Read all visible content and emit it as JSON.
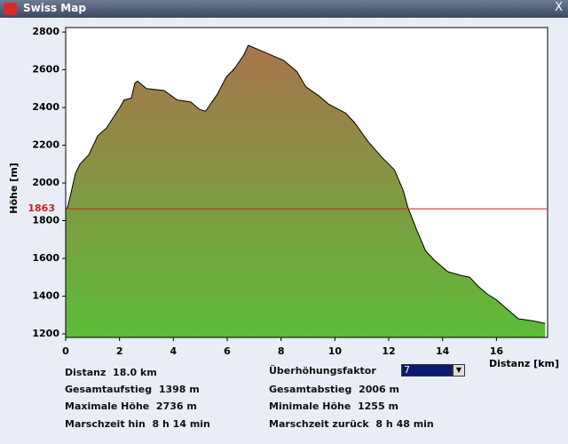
{
  "window": {
    "title": "Swiss Map",
    "close": "X"
  },
  "chart_data": {
    "type": "area",
    "x": [
      0,
      0.07,
      0.2,
      0.36,
      0.53,
      0.86,
      1.19,
      1.51,
      2.01,
      2.17,
      2.44,
      2.57,
      2.67,
      3.0,
      3.65,
      4.15,
      4.64,
      4.97,
      5.2,
      5.63,
      5.96,
      6.29,
      6.62,
      6.78,
      7.11,
      7.6,
      8.1,
      8.59,
      8.92,
      9.42,
      9.74,
      10.4,
      10.73,
      11.23,
      11.72,
      12.21,
      12.54,
      12.71,
      13.04,
      13.37,
      13.7,
      14.19,
      14.68,
      15.01,
      15.34,
      15.67,
      16.0,
      16.49,
      16.82,
      17.32,
      17.81
    ],
    "values": [
      1863,
      1870,
      1950,
      2050,
      2100,
      2150,
      2250,
      2290,
      2400,
      2440,
      2450,
      2530,
      2540,
      2500,
      2490,
      2440,
      2430,
      2390,
      2380,
      2470,
      2560,
      2610,
      2680,
      2730,
      2710,
      2680,
      2650,
      2590,
      2510,
      2460,
      2420,
      2370,
      2320,
      2220,
      2140,
      2070,
      1960,
      1870,
      1750,
      1640,
      1590,
      1530,
      1510,
      1500,
      1450,
      1410,
      1380,
      1320,
      1280,
      1270,
      1255
    ],
    "color_top": "#a8744c",
    "color_bottom": "#5cbc38",
    "line_color": "#000000",
    "xlim": [
      0,
      17.9
    ],
    "ylim": [
      1181,
      2824
    ],
    "xticks": [
      0,
      2,
      4,
      6,
      8,
      10,
      12,
      14,
      16
    ],
    "yticks": [
      1200,
      1400,
      1600,
      1800,
      2000,
      2200,
      2400,
      2600,
      2800
    ],
    "x_label": "Distanz [km]",
    "y_label": "Höhe [m]",
    "reference_line": 1863,
    "reference_color": "#cc2020"
  },
  "stats": {
    "left": [
      {
        "label": "Distanz",
        "value": "18.0 km"
      },
      {
        "label": "Gesamtaufstieg",
        "value": "1398 m"
      },
      {
        "label": "Maximale Höhe",
        "value": "2736 m"
      },
      {
        "label": "Marschzeit hin",
        "value": "8 h 14 min"
      }
    ],
    "factor": {
      "label": "Überhöhungsfaktor",
      "value": "7"
    },
    "right": [
      {
        "label": "Gesamtabstieg",
        "value": "2006 m"
      },
      {
        "label": "Minimale Höhe",
        "value": "1255 m"
      },
      {
        "label": "Marschzeit zurück",
        "value": "8 h 48 min"
      }
    ]
  }
}
